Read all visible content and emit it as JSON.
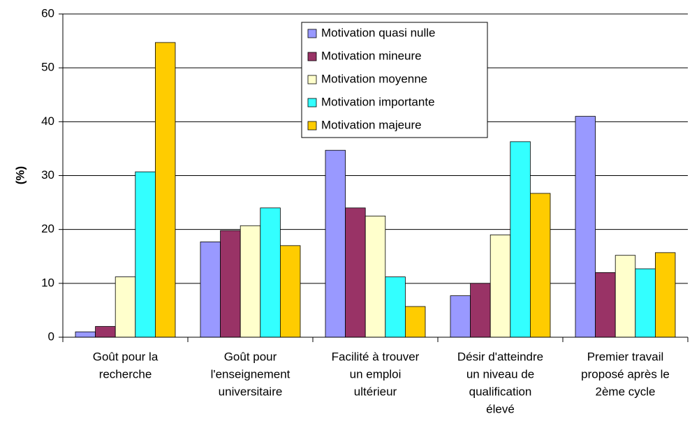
{
  "chart_data": {
    "type": "bar",
    "ylabel": "(%)",
    "categories": [
      [
        "Goût pour la",
        "recherche"
      ],
      [
        "Goût pour",
        "l'enseignement",
        "universitaire"
      ],
      [
        "Facilité à trouver",
        "un emploi",
        "ultérieur"
      ],
      [
        "Désir d'atteindre",
        "un niveau de",
        "qualification",
        "élevé"
      ],
      [
        "Premier travail",
        "proposé après le",
        "2ème cycle"
      ]
    ],
    "series": [
      {
        "name": "Motivation quasi nulle",
        "color": "#9999ff",
        "values": [
          1,
          17.7,
          34.7,
          7.7,
          41
        ]
      },
      {
        "name": "Motivation mineure",
        "color": "#993366",
        "values": [
          2,
          19.8,
          24,
          10,
          12
        ]
      },
      {
        "name": "Motivation moyenne",
        "color": "#ffffcc",
        "values": [
          11.2,
          20.7,
          22.5,
          19,
          15.2
        ]
      },
      {
        "name": "Motivation importante",
        "color": "#33ffff",
        "values": [
          30.7,
          24,
          11.2,
          36.3,
          12.7
        ]
      },
      {
        "name": "Motivation majeure",
        "color": "#ffcc00",
        "values": [
          54.7,
          17,
          5.7,
          26.7,
          15.7
        ]
      }
    ],
    "ylim": [
      0,
      60
    ],
    "yticks": [
      0,
      10,
      20,
      30,
      40,
      50,
      60
    ],
    "grid": true,
    "legend": "top"
  }
}
